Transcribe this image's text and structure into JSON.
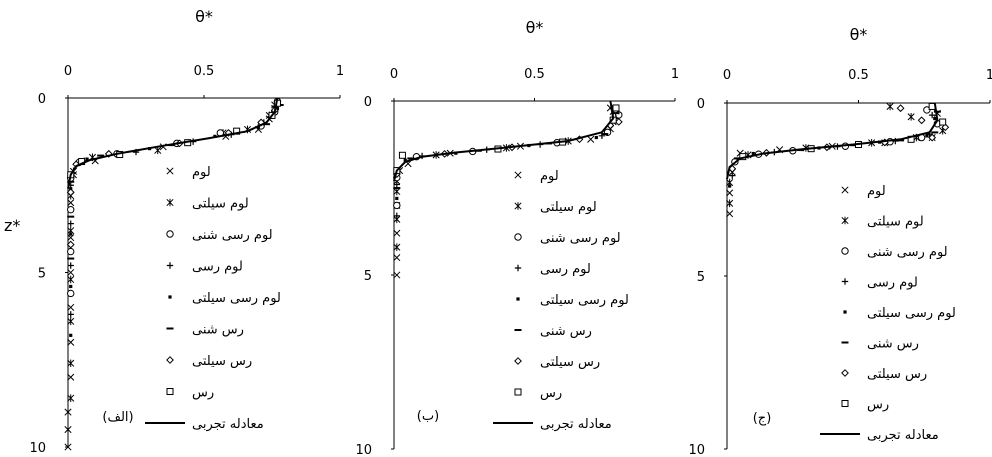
{
  "figure": {
    "shared_ylabel": "z*",
    "legend_labels": [
      "لوم",
      "لوم سیلتی",
      "لوم رسی شنی",
      "لوم رسی",
      "لوم رسی سیلتی",
      "رس شنی",
      "رس سیلتی",
      "رس",
      "معادله تجربی"
    ],
    "legend_markers": [
      "x",
      "asterisk",
      "circle",
      "plus",
      "dot",
      "dash",
      "diamond",
      "square",
      "line"
    ]
  },
  "chart_data": [
    {
      "type": "scatter",
      "title": "θ*",
      "panel_label": "(الف)",
      "x_ticks": [
        "0",
        "0.5",
        "1"
      ],
      "y_ticks": [
        "0",
        "5",
        "10"
      ],
      "xlim": [
        0,
        1
      ],
      "ylim": [
        0,
        10
      ],
      "y_inverted": true,
      "series": [
        {
          "name": "لوم",
          "marker": "x",
          "points": [
            [
              0.76,
              0.3
            ],
            [
              0.74,
              0.6
            ],
            [
              0.7,
              0.9
            ],
            [
              0.58,
              1.1
            ],
            [
              0.35,
              1.4
            ],
            [
              0.1,
              1.8
            ],
            [
              0.02,
              2.2
            ],
            [
              0.01,
              3.0
            ],
            [
              0.01,
              4.0
            ],
            [
              0.01,
              5.0
            ],
            [
              0.01,
              6.0
            ],
            [
              0.01,
              7.0
            ],
            [
              0.01,
              8.0
            ],
            [
              0.0,
              9.0
            ],
            [
              0.0,
              9.5
            ],
            [
              0.0,
              10.0
            ]
          ]
        },
        {
          "name": "لوم سیلتی",
          "marker": "asterisk",
          "points": [
            [
              0.76,
              0.2
            ],
            [
              0.74,
              0.5
            ],
            [
              0.66,
              0.9
            ],
            [
              0.57,
              1.0
            ],
            [
              0.33,
              1.5
            ],
            [
              0.09,
              1.7
            ],
            [
              0.02,
              2.1
            ],
            [
              0.01,
              2.8
            ],
            [
              0.01,
              3.8
            ],
            [
              0.01,
              5.2
            ],
            [
              0.01,
              6.4
            ],
            [
              0.01,
              7.6
            ],
            [
              0.01,
              8.6
            ]
          ]
        },
        {
          "name": "لوم رسی شنی",
          "marker": "circle",
          "points": [
            [
              0.77,
              0.1
            ],
            [
              0.76,
              0.4
            ],
            [
              0.71,
              0.8
            ],
            [
              0.56,
              1.0
            ],
            [
              0.4,
              1.3
            ],
            [
              0.18,
              1.6
            ],
            [
              0.04,
              1.85
            ],
            [
              0.01,
              2.3
            ],
            [
              0.01,
              3.2
            ],
            [
              0.01,
              4.4
            ],
            [
              0.01,
              5.6
            ]
          ]
        },
        {
          "name": "لوم رسی",
          "marker": "plus",
          "points": [
            [
              0.76,
              0.25
            ],
            [
              0.72,
              0.7
            ],
            [
              0.6,
              1.05
            ],
            [
              0.46,
              1.25
            ],
            [
              0.25,
              1.55
            ],
            [
              0.06,
              1.8
            ],
            [
              0.01,
              2.5
            ],
            [
              0.01,
              3.6
            ],
            [
              0.01,
              4.8
            ],
            [
              0.01,
              6.2
            ]
          ]
        },
        {
          "name": "لوم رسی سیلتی",
          "marker": "dot",
          "points": [
            [
              0.77,
              0.3
            ],
            [
              0.7,
              0.85
            ],
            [
              0.54,
              1.1
            ],
            [
              0.3,
              1.45
            ],
            [
              0.07,
              1.75
            ],
            [
              0.01,
              2.6
            ],
            [
              0.01,
              3.9
            ],
            [
              0.01,
              5.4
            ],
            [
              0.01,
              6.8
            ]
          ]
        },
        {
          "name": "رس شنی",
          "marker": "dash",
          "points": [
            [
              0.78,
              0.2
            ],
            [
              0.73,
              0.75
            ],
            [
              0.62,
              1.0
            ],
            [
              0.38,
              1.35
            ],
            [
              0.12,
              1.65
            ],
            [
              0.01,
              2.4
            ],
            [
              0.01,
              3.4
            ],
            [
              0.01,
              4.6
            ]
          ]
        },
        {
          "name": "رس سیلتی",
          "marker": "diamond",
          "points": [
            [
              0.76,
              0.35
            ],
            [
              0.71,
              0.7
            ],
            [
              0.59,
              1.0
            ],
            [
              0.41,
              1.3
            ],
            [
              0.15,
              1.6
            ],
            [
              0.03,
              1.9
            ],
            [
              0.01,
              2.7
            ],
            [
              0.01,
              4.2
            ]
          ]
        },
        {
          "name": "رس",
          "marker": "square",
          "points": [
            [
              0.77,
              0.15
            ],
            [
              0.75,
              0.5
            ],
            [
              0.62,
              0.95
            ],
            [
              0.44,
              1.28
            ],
            [
              0.19,
              1.62
            ],
            [
              0.05,
              1.82
            ],
            [
              0.01,
              2.2
            ]
          ]
        },
        {
          "name": "معادله تجربی",
          "marker": "line",
          "points": [
            [
              0.77,
              0.0
            ],
            [
              0.76,
              0.4
            ],
            [
              0.73,
              0.7
            ],
            [
              0.66,
              0.95
            ],
            [
              0.52,
              1.15
            ],
            [
              0.34,
              1.38
            ],
            [
              0.18,
              1.6
            ],
            [
              0.08,
              1.78
            ],
            [
              0.03,
              1.95
            ],
            [
              0.01,
              2.2
            ],
            [
              0.0,
              2.6
            ]
          ]
        }
      ]
    },
    {
      "type": "scatter",
      "title": "θ*",
      "panel_label": "(ب)",
      "x_ticks": [
        "0",
        "0.5",
        "1"
      ],
      "y_ticks": [
        "0",
        "5",
        "10"
      ],
      "xlim": [
        0,
        1
      ],
      "ylim": [
        0,
        10
      ],
      "y_inverted": true,
      "series": [
        {
          "name": "لوم",
          "marker": "x",
          "points": [
            [
              0.77,
              0.2
            ],
            [
              0.78,
              0.6
            ],
            [
              0.7,
              1.1
            ],
            [
              0.45,
              1.3
            ],
            [
              0.2,
              1.5
            ],
            [
              0.05,
              1.8
            ],
            [
              0.01,
              2.3
            ],
            [
              0.01,
              3.0
            ],
            [
              0.01,
              3.8
            ],
            [
              0.01,
              4.5
            ],
            [
              0.01,
              5.0
            ]
          ]
        },
        {
          "name": "لوم سیلتی",
          "marker": "asterisk",
          "points": [
            [
              0.78,
              0.3
            ],
            [
              0.77,
              0.8
            ],
            [
              0.62,
              1.15
            ],
            [
              0.4,
              1.35
            ],
            [
              0.15,
              1.55
            ],
            [
              0.02,
              2.0
            ],
            [
              0.01,
              2.6
            ],
            [
              0.01,
              3.4
            ],
            [
              0.01,
              4.2
            ]
          ]
        },
        {
          "name": "لوم رسی شنی",
          "marker": "circle",
          "points": [
            [
              0.8,
              0.4
            ],
            [
              0.76,
              0.9
            ],
            [
              0.58,
              1.2
            ],
            [
              0.28,
              1.45
            ],
            [
              0.08,
              1.6
            ],
            [
              0.01,
              2.2
            ],
            [
              0.01,
              3.0
            ]
          ]
        },
        {
          "name": "لوم رسی",
          "marker": "plus",
          "points": [
            [
              0.79,
              0.5
            ],
            [
              0.74,
              1.0
            ],
            [
              0.52,
              1.25
            ],
            [
              0.33,
              1.4
            ],
            [
              0.1,
              1.58
            ],
            [
              0.01,
              2.4
            ],
            [
              0.01,
              3.3
            ]
          ]
        },
        {
          "name": "لوم رسی سیلتی",
          "marker": "dot",
          "points": [
            [
              0.78,
              0.25
            ],
            [
              0.72,
              1.05
            ],
            [
              0.48,
              1.28
            ],
            [
              0.22,
              1.5
            ],
            [
              0.04,
              1.7
            ],
            [
              0.01,
              2.8
            ]
          ]
        },
        {
          "name": "رس شنی",
          "marker": "dash",
          "points": [
            [
              0.79,
              0.35
            ],
            [
              0.75,
              0.95
            ],
            [
              0.55,
              1.22
            ],
            [
              0.3,
              1.43
            ],
            [
              0.06,
              1.65
            ],
            [
              0.01,
              2.5
            ]
          ]
        },
        {
          "name": "رس سیلتی",
          "marker": "diamond",
          "points": [
            [
              0.8,
              0.6
            ],
            [
              0.77,
              0.7
            ],
            [
              0.66,
              1.1
            ],
            [
              0.42,
              1.33
            ],
            [
              0.18,
              1.52
            ],
            [
              0.01,
              2.1
            ]
          ]
        },
        {
          "name": "رس",
          "marker": "square",
          "points": [
            [
              0.79,
              0.2
            ],
            [
              0.78,
              0.55
            ],
            [
              0.6,
              1.18
            ],
            [
              0.37,
              1.38
            ],
            [
              0.03,
              1.56
            ],
            [
              0.01,
              2.0
            ]
          ]
        },
        {
          "name": "معادله تجربی",
          "marker": "line",
          "points": [
            [
              0.77,
              0.0
            ],
            [
              0.78,
              0.5
            ],
            [
              0.74,
              0.9
            ],
            [
              0.62,
              1.15
            ],
            [
              0.42,
              1.32
            ],
            [
              0.22,
              1.48
            ],
            [
              0.1,
              1.6
            ],
            [
              0.04,
              1.75
            ],
            [
              0.01,
              2.0
            ],
            [
              0.0,
              2.3
            ]
          ]
        }
      ]
    },
    {
      "type": "scatter",
      "title": "θ*",
      "panel_label": "(ج)",
      "x_ticks": [
        "0",
        "0.5",
        "1"
      ],
      "y_ticks": [
        "0",
        "5",
        "10"
      ],
      "xlim": [
        0,
        1
      ],
      "ylim": [
        0,
        10
      ],
      "y_inverted": true,
      "series": [
        {
          "name": "لوم",
          "marker": "x",
          "points": [
            [
              0.8,
              0.3
            ],
            [
              0.78,
              1.0
            ],
            [
              0.6,
              1.15
            ],
            [
              0.4,
              1.25
            ],
            [
              0.2,
              1.35
            ],
            [
              0.05,
              1.45
            ],
            [
              0.02,
              2.0
            ],
            [
              0.01,
              2.6
            ],
            [
              0.01,
              3.2
            ]
          ]
        },
        {
          "name": "لوم سیلتی",
          "marker": "asterisk",
          "points": [
            [
              0.62,
              0.1
            ],
            [
              0.7,
              0.4
            ],
            [
              0.82,
              0.8
            ],
            [
              0.72,
              1.0
            ],
            [
              0.55,
              1.15
            ],
            [
              0.3,
              1.3
            ],
            [
              0.08,
              1.5
            ],
            [
              0.01,
              2.3
            ],
            [
              0.01,
              2.9
            ]
          ]
        },
        {
          "name": "لوم رسی شنی",
          "marker": "circle",
          "points": [
            [
              0.76,
              0.2
            ],
            [
              0.8,
              0.6
            ],
            [
              0.74,
              1.0
            ],
            [
              0.62,
              1.12
            ],
            [
              0.45,
              1.25
            ],
            [
              0.25,
              1.38
            ],
            [
              0.12,
              1.48
            ],
            [
              0.03,
              1.7
            ]
          ]
        },
        {
          "name": "لوم رسی",
          "marker": "plus",
          "points": [
            [
              0.78,
              0.35
            ],
            [
              0.77,
              0.9
            ],
            [
              0.64,
              1.1
            ],
            [
              0.42,
              1.26
            ],
            [
              0.18,
              1.42
            ],
            [
              0.02,
              2.1
            ]
          ]
        },
        {
          "name": "لوم رسی سیلتی",
          "marker": "dot",
          "points": [
            [
              0.79,
              0.45
            ],
            [
              0.76,
              0.95
            ],
            [
              0.58,
              1.13
            ],
            [
              0.35,
              1.3
            ],
            [
              0.1,
              1.46
            ],
            [
              0.01,
              2.4
            ]
          ]
        },
        {
          "name": "رس شنی",
          "marker": "dash",
          "points": [
            [
              0.8,
              0.25
            ],
            [
              0.79,
              0.85
            ],
            [
              0.66,
              1.08
            ],
            [
              0.48,
              1.22
            ],
            [
              0.28,
              1.36
            ],
            [
              0.04,
              1.6
            ]
          ]
        },
        {
          "name": "رس سیلتی",
          "marker": "diamond",
          "points": [
            [
              0.66,
              0.15
            ],
            [
              0.74,
              0.5
            ],
            [
              0.83,
              0.7
            ],
            [
              0.78,
              1.0
            ],
            [
              0.6,
              1.14
            ],
            [
              0.38,
              1.28
            ],
            [
              0.15,
              1.44
            ],
            [
              0.02,
              1.9
            ]
          ]
        },
        {
          "name": "رس",
          "marker": "square",
          "points": [
            [
              0.78,
              0.1
            ],
            [
              0.82,
              0.55
            ],
            [
              0.7,
              1.05
            ],
            [
              0.5,
              1.2
            ],
            [
              0.32,
              1.32
            ],
            [
              0.06,
              1.55
            ]
          ]
        },
        {
          "name": "معادله تجربی",
          "marker": "line",
          "points": [
            [
              0.79,
              0.0
            ],
            [
              0.8,
              0.5
            ],
            [
              0.77,
              0.85
            ],
            [
              0.66,
              1.05
            ],
            [
              0.48,
              1.2
            ],
            [
              0.28,
              1.34
            ],
            [
              0.14,
              1.46
            ],
            [
              0.05,
              1.6
            ],
            [
              0.01,
              1.85
            ],
            [
              0.0,
              2.2
            ]
          ]
        }
      ]
    }
  ]
}
